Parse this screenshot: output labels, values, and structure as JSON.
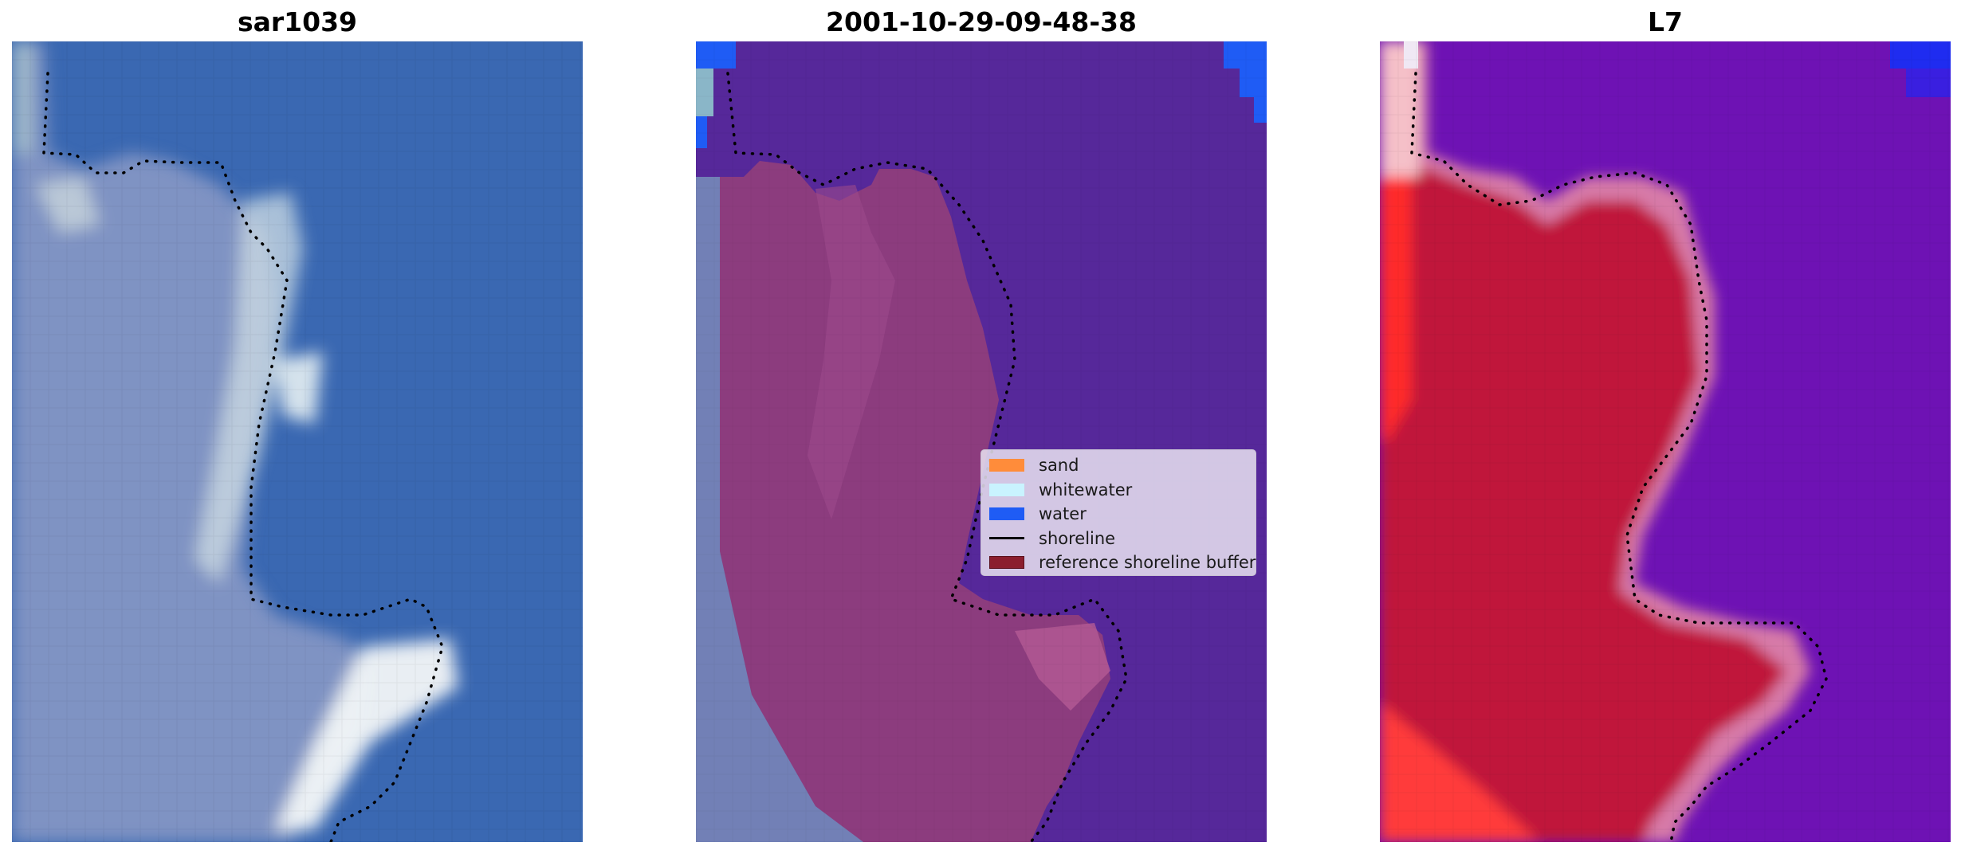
{
  "panels": [
    {
      "title": "sar1039"
    },
    {
      "title": "2001-10-29-09-48-38"
    },
    {
      "title": "L7"
    }
  ],
  "legend": {
    "items": [
      {
        "label": "sand",
        "color": "#ff8c3a",
        "kind": "patch"
      },
      {
        "label": "whitewater",
        "color": "#c9f3ff",
        "kind": "patch"
      },
      {
        "label": "water",
        "color": "#1f5cf5",
        "kind": "patch"
      },
      {
        "label": "shoreline",
        "color": "#000000",
        "kind": "line"
      },
      {
        "label": "reference shoreline buffer",
        "color": "#8b1e2e",
        "kind": "patch"
      }
    ]
  },
  "colors": {
    "rgb_water": "#3a68b2",
    "rgb_land": "#7f93c3",
    "rgb_surf": "#e6f0f2",
    "class_water": "#56289a",
    "class_buffer": "#8c3c7e",
    "class_buffer_edge": "#b45a95",
    "class_blue": "#1f5cf5",
    "mndwi_water": "#6e12b4",
    "mndwi_land": "#c0123a",
    "mndwi_edge": "#d77aa8",
    "shoreline": "#000000"
  }
}
